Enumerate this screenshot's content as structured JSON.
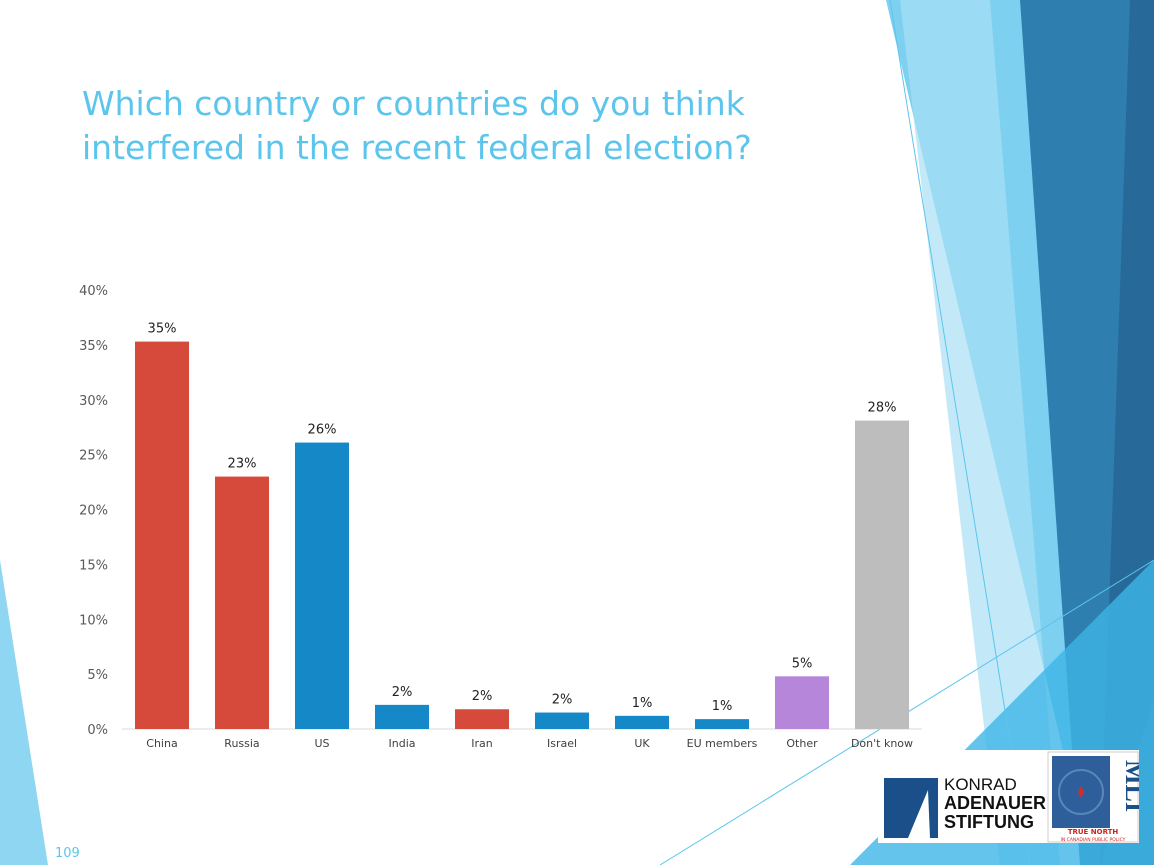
{
  "slide": {
    "title": "Which country or countries do you think interfered in the recent federal election?",
    "page_number": "109"
  },
  "logos": {
    "kas": [
      "KONRAD",
      "ADENAUER",
      "STIFTUNG"
    ],
    "mli": "MLI",
    "mli_tagline": [
      "TRUE NORTH",
      "IN CANADIAN PUBLIC POLICY"
    ]
  },
  "chart_data": {
    "type": "bar",
    "title": "",
    "categories": [
      "China",
      "Russia",
      "US",
      "India",
      "Iran",
      "Israel",
      "UK",
      "EU members",
      "Other",
      "Don't know"
    ],
    "values": [
      35.3,
      23.0,
      26.1,
      2.2,
      1.8,
      1.5,
      1.2,
      0.9,
      4.8,
      28.1
    ],
    "data_labels": [
      "35%",
      "23%",
      "26%",
      "2%",
      "2%",
      "2%",
      "1%",
      "1%",
      "5%",
      "28%"
    ],
    "colors": [
      "#d64a3b",
      "#d64a3b",
      "#1589c8",
      "#1589c8",
      "#d64a3b",
      "#1589c8",
      "#1589c8",
      "#1589c8",
      "#b586d9",
      "#bdbdbd"
    ],
    "ylim": [
      0,
      40
    ],
    "yticks": [
      "0%",
      "5%",
      "10%",
      "15%",
      "20%",
      "25%",
      "30%",
      "35%",
      "40%"
    ],
    "grid": false,
    "legend": "none"
  }
}
